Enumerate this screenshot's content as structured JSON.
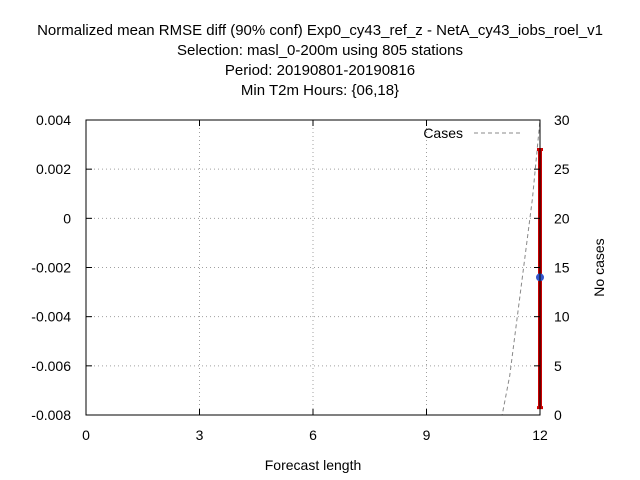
{
  "chart_data": {
    "type": "line",
    "title_lines": [
      "Normalized mean RMSE diff (90% conf) Exp0_cy43_ref_z - NetA_cy43_iobs_roel_v1",
      "Selection: masl_0-200m using   805 stations",
      "Period: 20190801-20190816",
      "Min T2m   Hours: {06,18}"
    ],
    "xlabel": "Forecast length",
    "ylabel": "",
    "y2label": "No cases",
    "xlim": [
      0,
      12
    ],
    "ylim": [
      -0.008,
      0.004
    ],
    "y2lim": [
      0,
      30
    ],
    "xticks": [
      0,
      3,
      6,
      9,
      12
    ],
    "xtick_labels": [
      "0",
      "3",
      "6",
      "9",
      "12"
    ],
    "yticks": [
      0.004,
      0.002,
      0,
      -0.002,
      -0.004,
      -0.006,
      -0.008
    ],
    "ytick_labels": [
      "0.004",
      "0.002",
      "0",
      "-0.002",
      "-0.004",
      "-0.006",
      "-0.008"
    ],
    "y2ticks": [
      30,
      25,
      20,
      15,
      10,
      5,
      0
    ],
    "y2tick_labels": [
      "30",
      "25",
      "20",
      "15",
      "10",
      "5",
      "0"
    ],
    "grid": true,
    "legend_position": "top-right",
    "legend_label": "Cases",
    "series": [
      {
        "name": "Cases",
        "axis": "y2",
        "style": "dashed",
        "color": "#888888",
        "x": [
          0,
          11,
          11.2,
          11.5,
          11.8,
          12
        ],
        "y": [
          0,
          0,
          4,
          13,
          22,
          30
        ]
      }
    ],
    "errorbars": [
      {
        "x": 12,
        "center": -0.0024,
        "lower": -0.0077,
        "upper": 0.0028,
        "color": "#cc0000",
        "marker_color": "#3355cc"
      }
    ]
  }
}
